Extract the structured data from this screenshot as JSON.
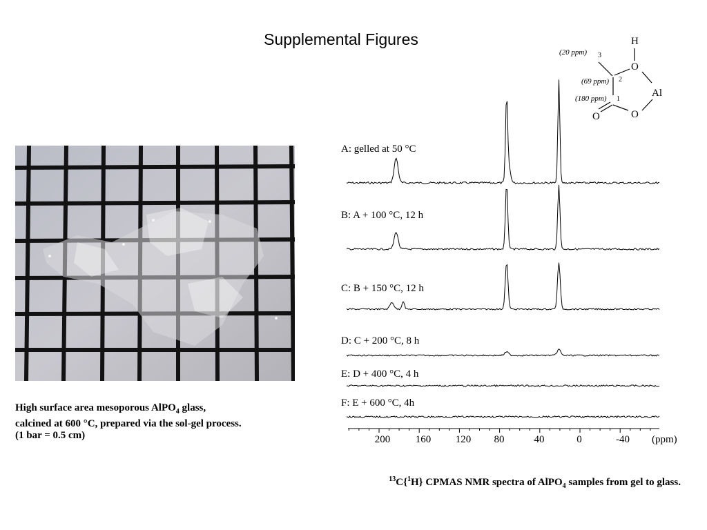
{
  "page_title": "Supplemental Figures",
  "left_caption": {
    "pre": "High surface area mesoporous AlPO",
    "sub": "4",
    "post": " glass, calcined at 600 °C, prepared via the sol-gel process. (1 bar = 0.5 cm)"
  },
  "right_caption": {
    "sup1": "13",
    "part1": "C{",
    "sup2": "1",
    "part2": "H} CPMAS NMR spectra of AlPO",
    "sub": "4",
    "part3": " samples from gel to glass."
  },
  "spectra": [
    {
      "label": "A: gelled at 50 °C"
    },
    {
      "label": "B: A + 100 °C, 12 h"
    },
    {
      "label": "C: B + 150 °C, 12 h"
    },
    {
      "label": "D: C + 200 °C, 8 h"
    },
    {
      "label": "E: D + 400 °C, 4 h"
    },
    {
      "label": "F: E + 600 °C, 4h"
    }
  ],
  "axis": {
    "ticks": [
      "200",
      "160",
      "120",
      "80",
      "40",
      "0",
      "-40"
    ],
    "unit": "(ppm)"
  },
  "structure": {
    "atoms": {
      "h": "H",
      "o_top": "O",
      "al": "Al",
      "o_ring": "O",
      "o_carbonyl": "O"
    },
    "positions": {
      "c3": "3",
      "c2": "2",
      "c1": "1"
    },
    "shifts": {
      "c3": "(20 ppm)",
      "c2": "(69 ppm)",
      "c1": "(180 ppm)"
    }
  }
}
